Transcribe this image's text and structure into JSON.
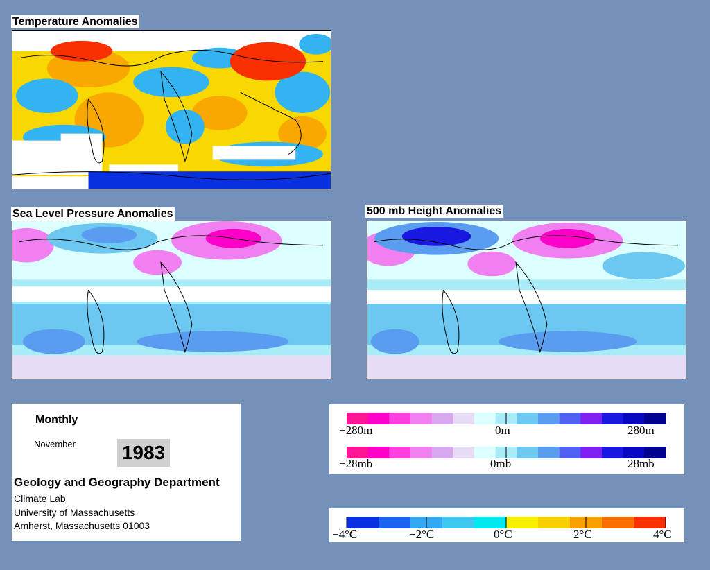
{
  "panels": {
    "temperature": {
      "title": "Temperature Anomalies"
    },
    "slp": {
      "title": "Sea Level Pressure Anomalies"
    },
    "height500": {
      "title": "500 mb Height Anomalies"
    }
  },
  "info": {
    "period": "Monthly",
    "month": "November",
    "year": "1983",
    "department": "Geology and Geography Department",
    "lab": "Climate Lab",
    "university": "University of Massachusetts",
    "city": "Amherst, Massachusetts 01003"
  },
  "legends": {
    "height": {
      "min": "−280m",
      "mid": "0m",
      "max": "280m"
    },
    "pressure": {
      "min": "−28mb",
      "mid": "0mb",
      "max": "28mb"
    },
    "temperature": {
      "t0": "−4°C",
      "t1": "−2°C",
      "t2": "0°C",
      "t3": "2°C",
      "t4": "4°C"
    }
  },
  "colors": {
    "background": "#7391b9",
    "anomaly_scale": [
      "#ff1493",
      "#ff00c8",
      "#ff40e0",
      "#f080f0",
      "#d8a8f0",
      "#e6dcf5",
      "#dcffff",
      "#a8ecf8",
      "#6cc8f0",
      "#5a9cf0",
      "#5060f0",
      "#8020f0",
      "#1818e0",
      "#0808c0",
      "#000090"
    ],
    "temp_scale": [
      "#0830e0",
      "#1c64f0",
      "#33a7f0",
      "#3fc8f0",
      "#00e8f0",
      "#f8f000",
      "#f8d000",
      "#f8a000",
      "#f87000",
      "#f83000"
    ]
  }
}
